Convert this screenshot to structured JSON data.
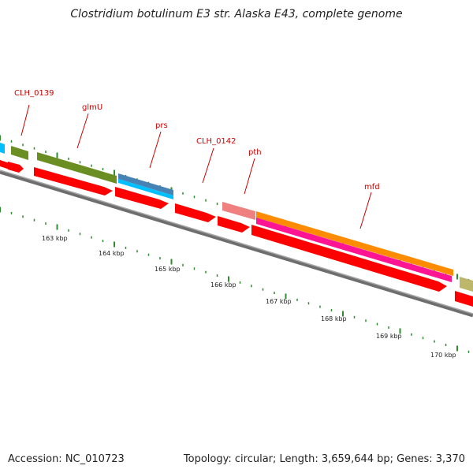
{
  "title": "Clostridium botulinum E3 str. Alaska E43, complete genome",
  "footer": {
    "accession": "Accession: NC_010723",
    "summary": "Topology: circular; Length: 3,659,644 bp; Genes: 3,370"
  },
  "colors": {
    "backbone": "#7a7a7a",
    "cds_red": "#ff0000",
    "ticks": "#2e8b2e",
    "label_red": "#cc0000"
  },
  "gene_labels": [
    {
      "id": "clh0139",
      "text": "CLH_0139"
    },
    {
      "id": "glmu",
      "text": "glmU"
    },
    {
      "id": "prs",
      "text": "prs"
    },
    {
      "id": "clh0142",
      "text": "CLH_0142"
    },
    {
      "id": "pth",
      "text": "pth"
    },
    {
      "id": "mfd",
      "text": "mfd"
    }
  ],
  "kbp_labels": [
    {
      "id": "k163",
      "text": "163 kbp"
    },
    {
      "id": "k164",
      "text": "164 kbp"
    },
    {
      "id": "k165",
      "text": "165 kbp"
    },
    {
      "id": "k166",
      "text": "166 kbp"
    },
    {
      "id": "k167",
      "text": "167 kbp"
    },
    {
      "id": "k168",
      "text": "168 kbp"
    },
    {
      "id": "k169",
      "text": "169 kbp"
    },
    {
      "id": "k170",
      "text": "170 kbp"
    }
  ]
}
